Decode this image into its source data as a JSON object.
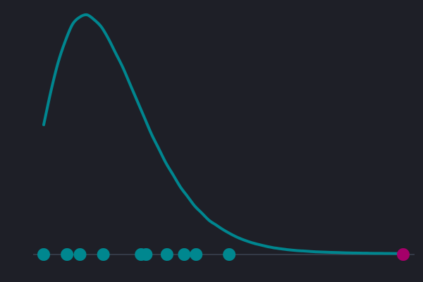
{
  "colors": {
    "background": "#1e1f27",
    "curve": "#00868f",
    "point": "#00878f",
    "highlight": "#a50069",
    "baseline": "#3b4452"
  },
  "chart_data": {
    "type": "line",
    "title": "",
    "xlabel": "",
    "ylabel": "",
    "grid": false,
    "legend": "none",
    "xlim": [
      0,
      100
    ],
    "ylim": [
      0,
      1
    ],
    "curve": {
      "x": [
        0,
        2,
        4,
        6,
        8,
        10,
        12,
        14,
        16,
        18,
        20,
        22,
        24,
        26,
        28,
        30,
        32,
        34,
        36,
        38,
        40,
        42,
        44,
        46,
        48,
        50,
        52,
        54,
        56,
        58,
        60,
        62,
        64,
        66,
        68,
        70,
        72,
        74,
        76,
        78,
        80,
        82,
        84,
        86,
        88,
        90,
        92,
        94,
        96,
        98,
        100
      ],
      "y": [
        0.54,
        0.68,
        0.8,
        0.89,
        0.96,
        0.99,
        1.0,
        0.98,
        0.95,
        0.9,
        0.84,
        0.78,
        0.71,
        0.64,
        0.57,
        0.5,
        0.44,
        0.38,
        0.33,
        0.28,
        0.24,
        0.2,
        0.17,
        0.14,
        0.12,
        0.1,
        0.083,
        0.068,
        0.056,
        0.046,
        0.038,
        0.031,
        0.025,
        0.021,
        0.017,
        0.014,
        0.012,
        0.01,
        0.008,
        0.007,
        0.006,
        0.005,
        0.004,
        0.0035,
        0.003,
        0.0025,
        0.002,
        0.0017,
        0.0014,
        0.0012,
        0.001
      ]
    },
    "points": [
      0,
      6.5,
      10.1,
      16.6,
      27.1,
      28.5,
      34.3,
      39.1,
      42.4,
      51.6
    ],
    "highlight_point": 100
  }
}
